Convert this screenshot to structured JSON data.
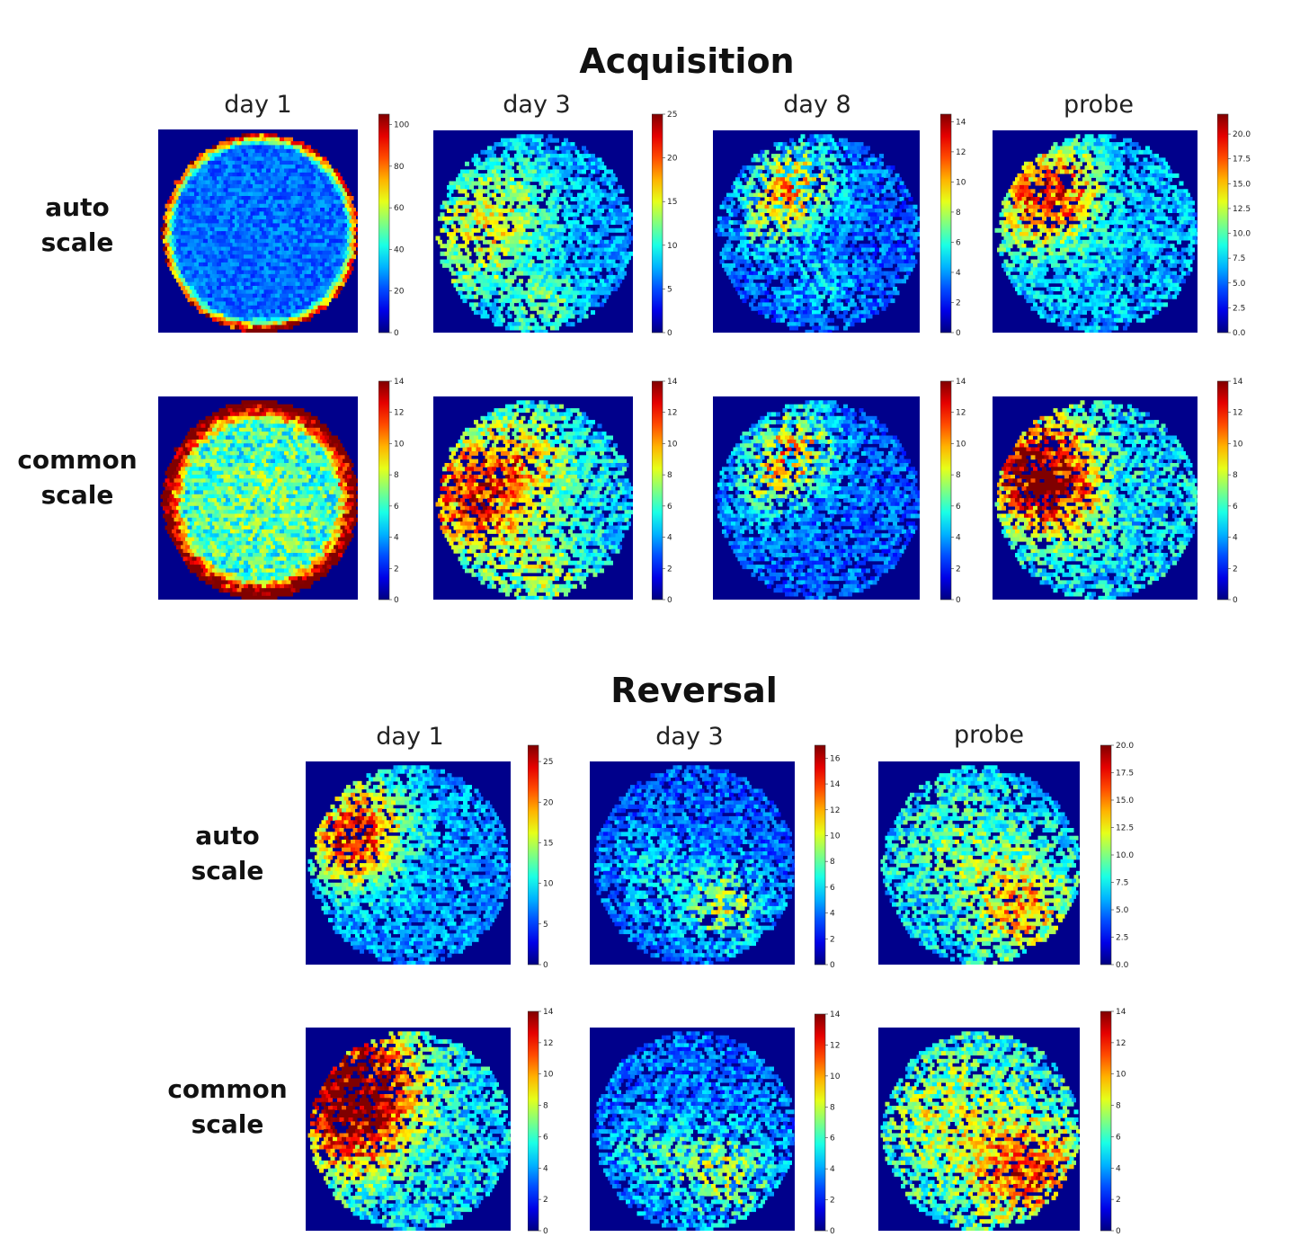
{
  "acquisition": {
    "title": "Acquisition",
    "columns": [
      "day 1",
      "day 3",
      "day 8",
      "probe"
    ],
    "rows": [
      "auto scale",
      "common scale"
    ]
  },
  "reversal": {
    "title": "Reversal",
    "columns": [
      "day 1",
      "day 3",
      "probe"
    ],
    "rows": [
      "auto scale",
      "common scale"
    ]
  },
  "colors": {
    "background": "#00008b",
    "colormap": "jet"
  },
  "chart_data": [
    {
      "type": "heatmap",
      "section": "Acquisition",
      "row": "auto scale",
      "column": "day 1",
      "colorbar_range": [
        0,
        105
      ],
      "colorbar_ticks": [
        "0",
        "20",
        "40",
        "60",
        "80",
        "100"
      ],
      "pattern": "high density along arena wall"
    },
    {
      "type": "heatmap",
      "section": "Acquisition",
      "row": "auto scale",
      "column": "day 3",
      "colorbar_range": [
        0,
        25
      ],
      "colorbar_ticks": [
        "0",
        "5",
        "10",
        "15",
        "20",
        "25"
      ],
      "pattern": "moderate density left side"
    },
    {
      "type": "heatmap",
      "section": "Acquisition",
      "row": "auto scale",
      "column": "day 8",
      "colorbar_range": [
        0,
        14.5
      ],
      "colorbar_ticks": [
        "0",
        "2",
        "4",
        "6",
        "8",
        "10",
        "12",
        "14"
      ],
      "pattern": "focal density upper-left quadrant"
    },
    {
      "type": "heatmap",
      "section": "Acquisition",
      "row": "auto scale",
      "column": "probe",
      "colorbar_range": [
        0,
        22
      ],
      "colorbar_ticks": [
        "0.0",
        "2.5",
        "5.0",
        "7.5",
        "10.0",
        "12.5",
        "15.0",
        "17.5",
        "20.0"
      ],
      "pattern": "high density upper-left quadrant"
    },
    {
      "type": "heatmap",
      "section": "Acquisition",
      "row": "common scale",
      "column": "day 1",
      "colorbar_range": [
        0,
        14
      ],
      "colorbar_ticks": [
        "0",
        "2",
        "4",
        "6",
        "8",
        "10",
        "12",
        "14"
      ],
      "pattern": "saturated along arena wall"
    },
    {
      "type": "heatmap",
      "section": "Acquisition",
      "row": "common scale",
      "column": "day 3",
      "colorbar_range": [
        0,
        14
      ],
      "colorbar_ticks": [
        "0",
        "2",
        "4",
        "6",
        "8",
        "10",
        "12",
        "14"
      ],
      "pattern": "high density left side"
    },
    {
      "type": "heatmap",
      "section": "Acquisition",
      "row": "common scale",
      "column": "day 8",
      "colorbar_range": [
        0,
        14
      ],
      "colorbar_ticks": [
        "0",
        "2",
        "4",
        "6",
        "8",
        "10",
        "12",
        "14"
      ],
      "pattern": "focal density upper-left quadrant"
    },
    {
      "type": "heatmap",
      "section": "Acquisition",
      "row": "common scale",
      "column": "probe",
      "colorbar_range": [
        0,
        14
      ],
      "colorbar_ticks": [
        "0",
        "2",
        "4",
        "6",
        "8",
        "10",
        "12",
        "14"
      ],
      "pattern": "saturated upper-left quadrant"
    },
    {
      "type": "heatmap",
      "section": "Reversal",
      "row": "auto scale",
      "column": "day 1",
      "colorbar_range": [
        0,
        27
      ],
      "colorbar_ticks": [
        "0",
        "5",
        "10",
        "15",
        "20",
        "25"
      ],
      "pattern": "high density upper-left quadrant"
    },
    {
      "type": "heatmap",
      "section": "Reversal",
      "row": "auto scale",
      "column": "day 3",
      "colorbar_range": [
        0,
        17
      ],
      "colorbar_ticks": [
        "0",
        "2",
        "4",
        "6",
        "8",
        "10",
        "12",
        "14",
        "16"
      ],
      "pattern": "moderate density lower-right"
    },
    {
      "type": "heatmap",
      "section": "Reversal",
      "row": "auto scale",
      "column": "probe",
      "colorbar_range": [
        0,
        20
      ],
      "colorbar_ticks": [
        "0.0",
        "2.5",
        "5.0",
        "7.5",
        "10.0",
        "12.5",
        "15.0",
        "17.5",
        "20.0"
      ],
      "pattern": "high density lower-right quadrant"
    },
    {
      "type": "heatmap",
      "section": "Reversal",
      "row": "common scale",
      "column": "day 1",
      "colorbar_range": [
        0,
        14
      ],
      "colorbar_ticks": [
        "0",
        "2",
        "4",
        "6",
        "8",
        "10",
        "12",
        "14"
      ],
      "pattern": "saturated upper-left quadrant"
    },
    {
      "type": "heatmap",
      "section": "Reversal",
      "row": "common scale",
      "column": "day 3",
      "colorbar_range": [
        0,
        14
      ],
      "colorbar_ticks": [
        "0",
        "2",
        "4",
        "6",
        "8",
        "10",
        "12",
        "14"
      ],
      "pattern": "moderate density lower-right"
    },
    {
      "type": "heatmap",
      "section": "Reversal",
      "row": "common scale",
      "column": "probe",
      "colorbar_range": [
        0,
        14
      ],
      "colorbar_ticks": [
        "0",
        "2",
        "4",
        "6",
        "8",
        "10",
        "12",
        "14"
      ],
      "pattern": "high density lower-right quadrant"
    }
  ]
}
